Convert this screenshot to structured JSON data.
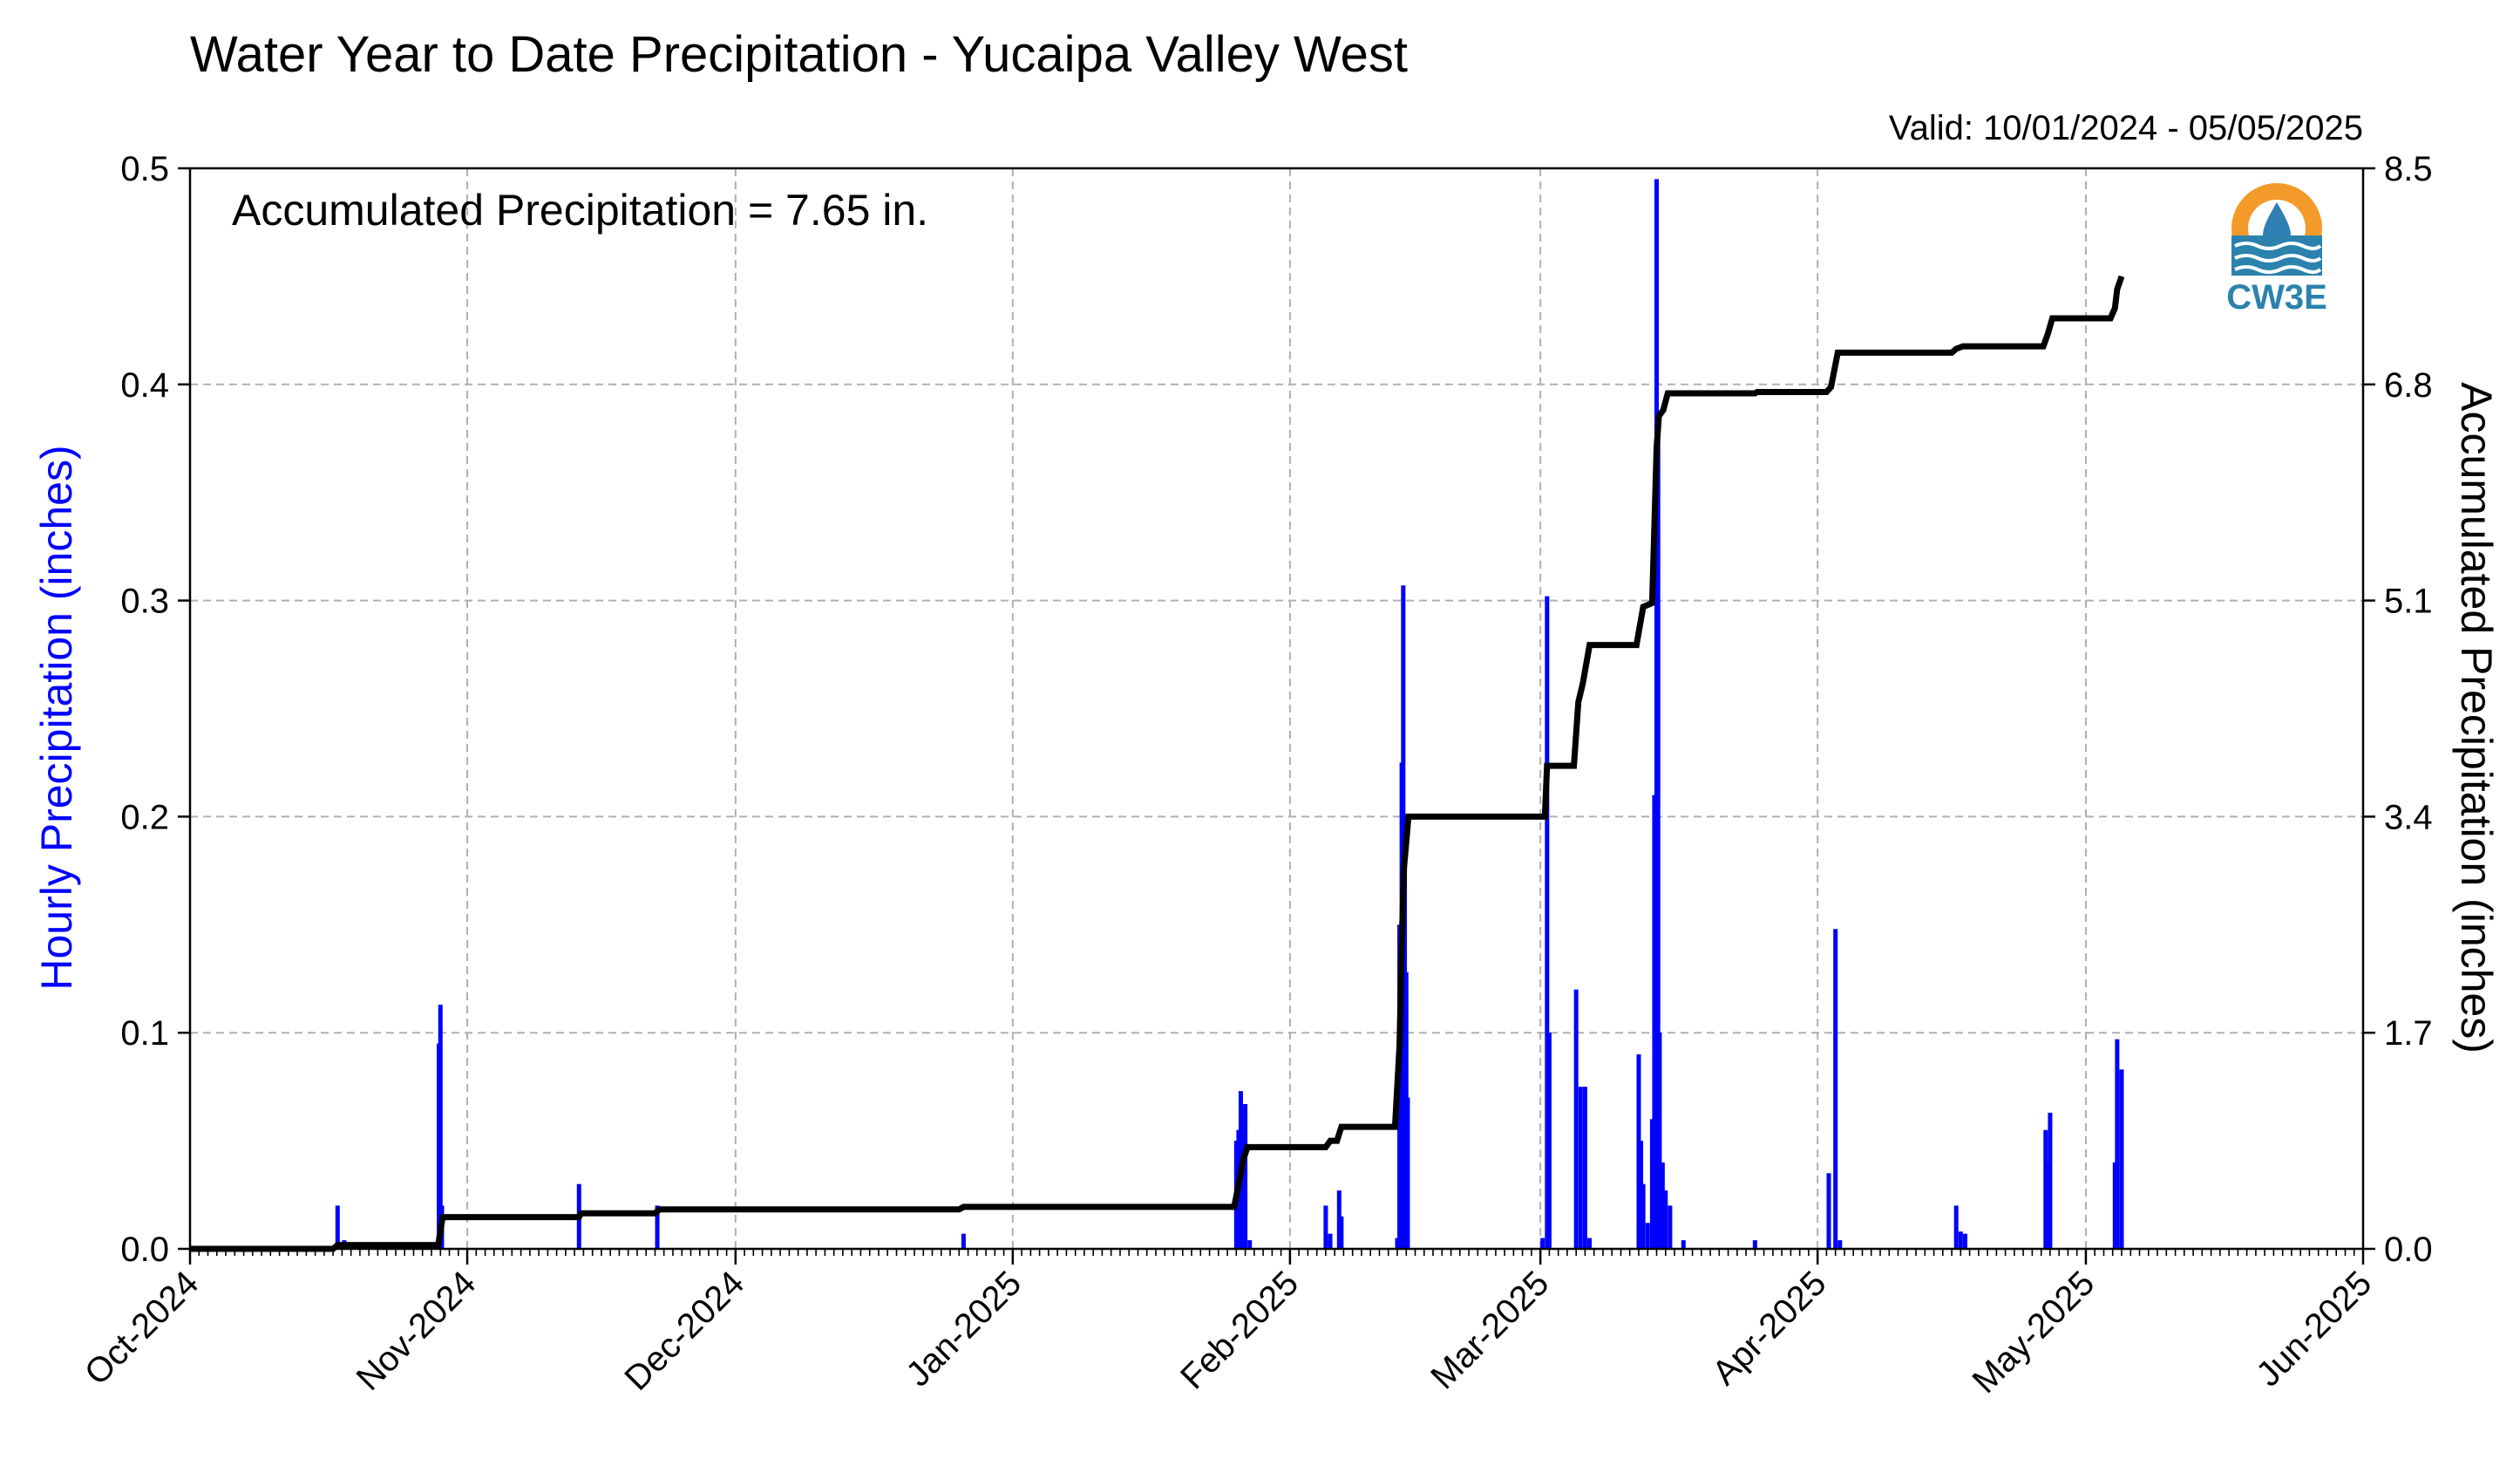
{
  "chart_data": {
    "type": "bar+line",
    "title": "Water Year to Date Precipitation - Yucaipa Valley West",
    "valid_text": "Valid: 10/01/2024 - 05/05/2025",
    "annotation": "Accumulated Precipitation = 7.65 in.",
    "logo_text": "CW3E",
    "left_axis": {
      "label": "Hourly Precipitation (inches)",
      "ylim": [
        0,
        0.5
      ],
      "ticks": [
        0,
        0.1,
        0.2,
        0.3,
        0.4,
        0.5
      ],
      "tick_labels": [
        "0.0",
        "0.1",
        "0.2",
        "0.3",
        "0.4",
        "0.5"
      ],
      "color": "#0000ff"
    },
    "right_axis": {
      "label": "Accumulated Precipitation (inches)",
      "ylim": [
        0,
        8.5
      ],
      "ticks": [
        0,
        1.7,
        3.4,
        5.1,
        6.8,
        8.5
      ],
      "tick_labels": [
        "0.0",
        "1.7",
        "3.4",
        "5.1",
        "6.8",
        "8.5"
      ],
      "color": "#000000"
    },
    "x_axis": {
      "range": [
        "2024-10-01",
        "2025-06-01"
      ],
      "ticks": [
        "2024-10-01",
        "2024-11-01",
        "2024-12-01",
        "2025-01-01",
        "2025-02-01",
        "2025-03-01",
        "2025-04-01",
        "2025-05-01",
        "2025-06-01"
      ],
      "tick_labels": [
        "Oct-2024",
        "Nov-2024",
        "Dec-2024",
        "Jan-2025",
        "Feb-2025",
        "Mar-2025",
        "Apr-2025",
        "May-2025",
        "Jun-2025"
      ]
    },
    "grid": true,
    "hourly_precipitation": {
      "name": "Hourly Precipitation",
      "color": "#0000ff",
      "points": [
        [
          "2024-10-17 12:00",
          0.02
        ],
        [
          "2024-10-18 06:00",
          0.004
        ],
        [
          "2024-10-28 20:00",
          0.095
        ],
        [
          "2024-10-29 00:00",
          0.113
        ],
        [
          "2024-10-29 04:00",
          0.02
        ],
        [
          "2024-11-13 12:00",
          0.03
        ],
        [
          "2024-11-22 06:00",
          0.02
        ],
        [
          "2024-12-26 12:00",
          0.007
        ],
        [
          "2025-01-26 00:00",
          0.05
        ],
        [
          "2025-01-26 06:00",
          0.055
        ],
        [
          "2025-01-26 12:00",
          0.073
        ],
        [
          "2025-01-26 18:00",
          0.065
        ],
        [
          "2025-01-27 00:00",
          0.067
        ],
        [
          "2025-01-27 12:00",
          0.004
        ],
        [
          "2025-02-05 00:00",
          0.02
        ],
        [
          "2025-02-05 12:00",
          0.007
        ],
        [
          "2025-02-06 12:00",
          0.027
        ],
        [
          "2025-02-06 18:00",
          0.015
        ],
        [
          "2025-02-13 00:00",
          0.005
        ],
        [
          "2025-02-13 06:00",
          0.15
        ],
        [
          "2025-02-13 12:00",
          0.225
        ],
        [
          "2025-02-13 16:00",
          0.307
        ],
        [
          "2025-02-13 20:00",
          0.2
        ],
        [
          "2025-02-14 00:00",
          0.128
        ],
        [
          "2025-02-14 04:00",
          0.07
        ],
        [
          "2025-03-01 06:00",
          0.005
        ],
        [
          "2025-03-01 18:00",
          0.302
        ],
        [
          "2025-03-02 00:00",
          0.1
        ],
        [
          "2025-03-05 00:00",
          0.12
        ],
        [
          "2025-03-05 12:00",
          0.075
        ],
        [
          "2025-03-06 00:00",
          0.075
        ],
        [
          "2025-03-06 12:00",
          0.005
        ],
        [
          "2025-03-12 00:00",
          0.09
        ],
        [
          "2025-03-12 06:00",
          0.05
        ],
        [
          "2025-03-12 12:00",
          0.03
        ],
        [
          "2025-03-13 00:00",
          0.012
        ],
        [
          "2025-03-13 12:00",
          0.06
        ],
        [
          "2025-03-13 18:00",
          0.21
        ],
        [
          "2025-03-14 00:00",
          0.495
        ],
        [
          "2025-03-14 04:00",
          0.38
        ],
        [
          "2025-03-14 08:00",
          0.1
        ],
        [
          "2025-03-14 16:00",
          0.04
        ],
        [
          "2025-03-15 00:00",
          0.027
        ],
        [
          "2025-03-15 12:00",
          0.02
        ],
        [
          "2025-03-17 00:00",
          0.004
        ],
        [
          "2025-03-25 00:00",
          0.004
        ],
        [
          "2025-04-02 06:00",
          0.035
        ],
        [
          "2025-04-03 00:00",
          0.148
        ],
        [
          "2025-04-03 12:00",
          0.004
        ],
        [
          "2025-04-16 12:00",
          0.02
        ],
        [
          "2025-04-17 00:00",
          0.008
        ],
        [
          "2025-04-17 12:00",
          0.007
        ],
        [
          "2025-04-26 12:00",
          0.055
        ],
        [
          "2025-04-26 18:00",
          0.04
        ],
        [
          "2025-04-27 00:00",
          0.063
        ],
        [
          "2025-05-04 06:00",
          0.04
        ],
        [
          "2025-05-04 12:00",
          0.097
        ],
        [
          "2025-05-05 00:00",
          0.083
        ]
      ]
    },
    "accumulated_precipitation": {
      "name": "Accumulated Precipitation",
      "color": "#000000",
      "points": [
        [
          "2024-10-01 00:00",
          0.0
        ],
        [
          "2024-10-17 00:00",
          0.0
        ],
        [
          "2024-10-17 12:00",
          0.03
        ],
        [
          "2024-10-28 18:00",
          0.03
        ],
        [
          "2024-10-29 06:00",
          0.25
        ],
        [
          "2024-11-13 12:00",
          0.25
        ],
        [
          "2024-11-13 18:00",
          0.28
        ],
        [
          "2024-11-22 00:00",
          0.28
        ],
        [
          "2024-11-22 12:00",
          0.31
        ],
        [
          "2024-12-26 00:00",
          0.31
        ],
        [
          "2024-12-26 12:00",
          0.33
        ],
        [
          "2025-01-25 18:00",
          0.33
        ],
        [
          "2025-01-26 06:00",
          0.5
        ],
        [
          "2025-01-26 18:00",
          0.7
        ],
        [
          "2025-01-27 06:00",
          0.8
        ],
        [
          "2025-02-05 00:00",
          0.8
        ],
        [
          "2025-02-05 12:00",
          0.85
        ],
        [
          "2025-02-06 06:00",
          0.85
        ],
        [
          "2025-02-06 18:00",
          0.96
        ],
        [
          "2025-02-12 18:00",
          0.96
        ],
        [
          "2025-02-13 06:00",
          1.6
        ],
        [
          "2025-02-13 12:00",
          2.4
        ],
        [
          "2025-02-13 18:00",
          3.0
        ],
        [
          "2025-02-14 00:00",
          3.2
        ],
        [
          "2025-02-14 06:00",
          3.4
        ],
        [
          "2025-03-01 12:00",
          3.4
        ],
        [
          "2025-03-01 18:00",
          3.8
        ],
        [
          "2025-03-04 18:00",
          3.8
        ],
        [
          "2025-03-05 06:00",
          4.3
        ],
        [
          "2025-03-05 18:00",
          4.45
        ],
        [
          "2025-03-06 12:00",
          4.75
        ],
        [
          "2025-03-11 18:00",
          4.75
        ],
        [
          "2025-03-12 12:00",
          5.05
        ],
        [
          "2025-03-13 12:00",
          5.08
        ],
        [
          "2025-03-13 18:00",
          5.7
        ],
        [
          "2025-03-14 00:00",
          6.3
        ],
        [
          "2025-03-14 06:00",
          6.55
        ],
        [
          "2025-03-14 18:00",
          6.6
        ],
        [
          "2025-03-15 06:00",
          6.73
        ],
        [
          "2025-03-25 00:00",
          6.73
        ],
        [
          "2025-03-25 06:00",
          6.74
        ],
        [
          "2025-04-02 00:00",
          6.74
        ],
        [
          "2025-04-02 12:00",
          6.78
        ],
        [
          "2025-04-03 06:00",
          7.05
        ],
        [
          "2025-04-16 00:00",
          7.05
        ],
        [
          "2025-04-16 12:00",
          7.08
        ],
        [
          "2025-04-17 06:00",
          7.1
        ],
        [
          "2025-04-26 06:00",
          7.1
        ],
        [
          "2025-04-26 18:00",
          7.2
        ],
        [
          "2025-04-27 06:00",
          7.32
        ],
        [
          "2025-05-03 18:00",
          7.32
        ],
        [
          "2025-05-04 06:00",
          7.4
        ],
        [
          "2025-05-04 12:00",
          7.55
        ],
        [
          "2025-05-05 00:00",
          7.65
        ]
      ]
    }
  }
}
